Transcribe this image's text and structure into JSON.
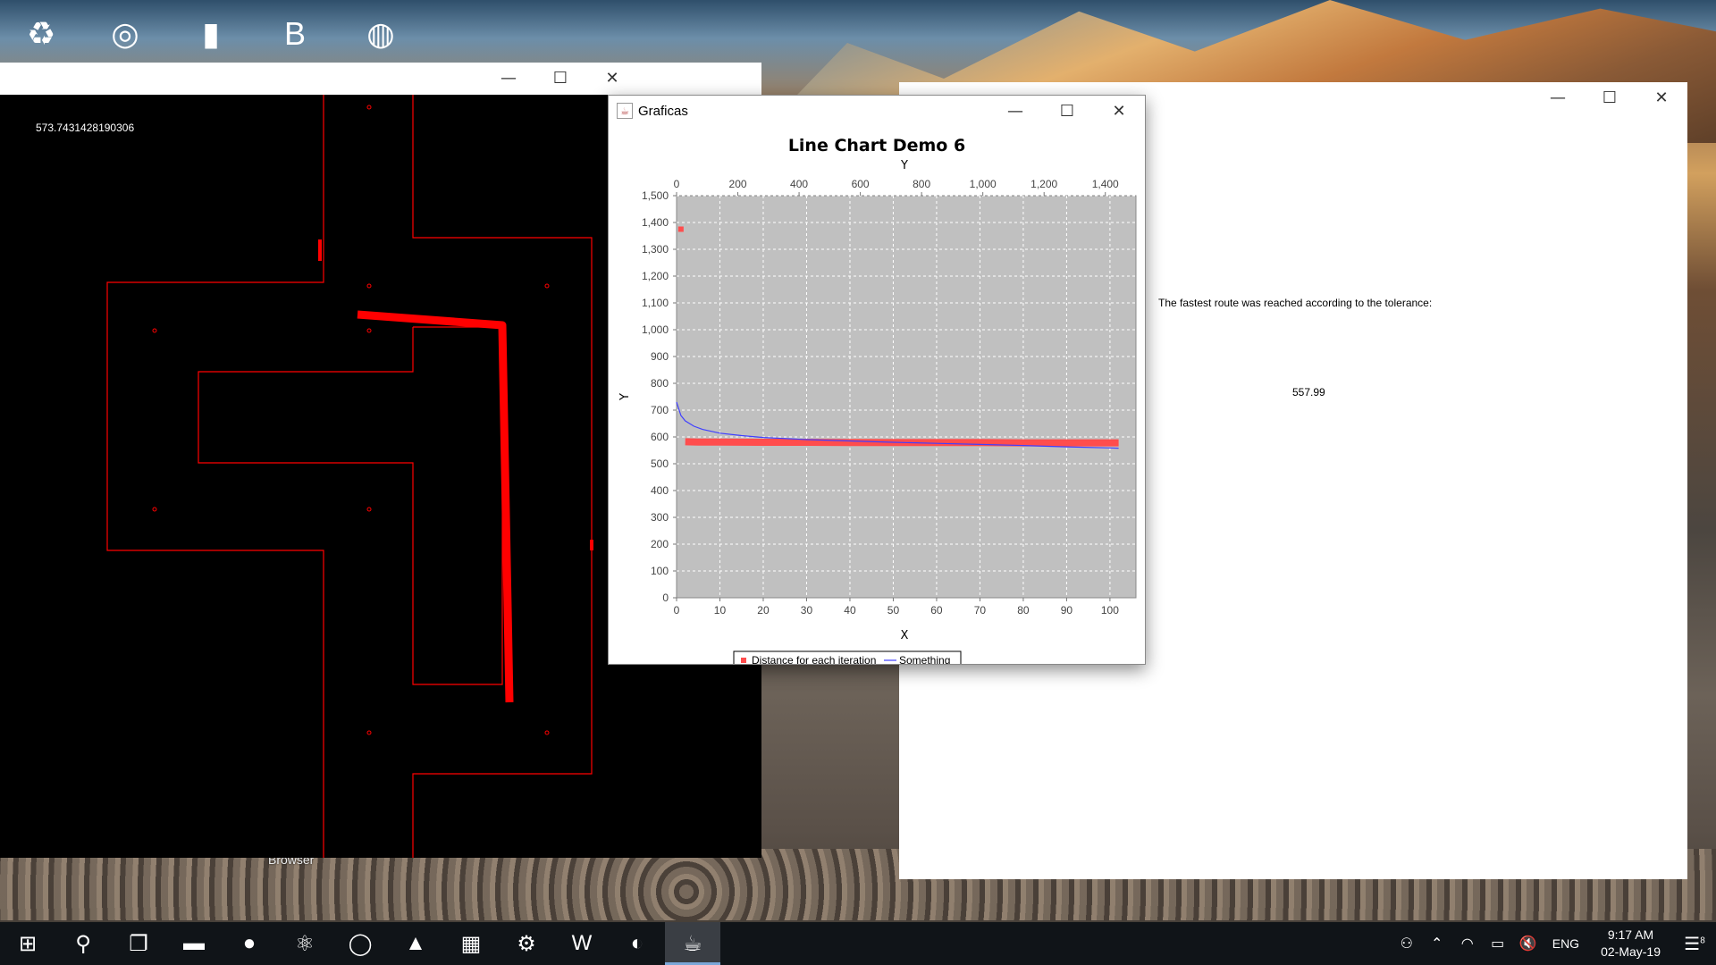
{
  "desktop": {
    "icons": [
      "recycle-bin-icon",
      "steam-icon",
      "folder-doc-icon",
      "bluejeans-icon",
      "globe-app-icon"
    ],
    "partial_label": "Browser"
  },
  "map_window": {
    "readout": "573.7431428190306"
  },
  "result_window": {
    "message": "The fastest route was reached according to the tolerance:",
    "value": "557.99"
  },
  "chart_window": {
    "title": "Graficas",
    "controls": {
      "minimize": "—",
      "maximize": "☐",
      "close": "✕"
    }
  },
  "chart_data": {
    "type": "line",
    "title": "Line Chart Demo 6",
    "xlabel": "X",
    "ylabel": "Y",
    "top_axis_label": "Y",
    "xlim": [
      0,
      106
    ],
    "ylim": [
      0,
      1500
    ],
    "top_lim": [
      0,
      1500
    ],
    "x_ticks": [
      "0",
      "10",
      "20",
      "30",
      "40",
      "50",
      "60",
      "70",
      "80",
      "90",
      "100"
    ],
    "y_ticks": [
      "0",
      "100",
      "200",
      "300",
      "400",
      "500",
      "600",
      "700",
      "800",
      "900",
      "1,000",
      "1,100",
      "1,200",
      "1,300",
      "1,400",
      "1,500"
    ],
    "top_ticks": [
      "0",
      "200",
      "400",
      "600",
      "800",
      "1,000",
      "1,200",
      "1,400"
    ],
    "grid": true,
    "legend_position": "bottom",
    "series": [
      {
        "name": "Distance for each iteration",
        "style": "square-markers",
        "color": "#ff4d4d",
        "points": [
          [
            1,
            1375
          ],
          [
            2,
            582
          ],
          [
            5,
            581
          ],
          [
            10,
            581
          ],
          [
            20,
            580
          ],
          [
            30,
            580
          ],
          [
            40,
            579
          ],
          [
            50,
            579
          ],
          [
            60,
            579
          ],
          [
            70,
            579
          ],
          [
            80,
            578
          ],
          [
            90,
            578
          ],
          [
            100,
            578
          ],
          [
            102,
            578
          ]
        ]
      },
      {
        "name": "Something",
        "style": "line",
        "color": "#3f3fff",
        "points": [
          [
            0,
            730
          ],
          [
            1,
            680
          ],
          [
            2,
            660
          ],
          [
            4,
            640
          ],
          [
            6,
            628
          ],
          [
            10,
            614
          ],
          [
            15,
            605
          ],
          [
            20,
            598
          ],
          [
            30,
            590
          ],
          [
            40,
            585
          ],
          [
            50,
            580
          ],
          [
            60,
            576
          ],
          [
            70,
            572
          ],
          [
            80,
            568
          ],
          [
            90,
            563
          ],
          [
            100,
            559
          ],
          [
            102,
            558
          ]
        ]
      }
    ]
  },
  "taskbar": {
    "apps": [
      {
        "name": "start-icon",
        "glyph": "⊞"
      },
      {
        "name": "search-icon",
        "glyph": "⚲"
      },
      {
        "name": "task-view-icon",
        "glyph": "❐"
      },
      {
        "name": "file-explorer-icon",
        "glyph": "▬"
      },
      {
        "name": "spotify-icon",
        "glyph": "●"
      },
      {
        "name": "atom-icon",
        "glyph": "⚛"
      },
      {
        "name": "opera-icon",
        "glyph": "◯"
      },
      {
        "name": "matlab-icon",
        "glyph": "▲"
      },
      {
        "name": "calculator-icon",
        "glyph": "▦"
      },
      {
        "name": "settings-gear-icon",
        "glyph": "⚙"
      },
      {
        "name": "word-icon",
        "glyph": "W"
      },
      {
        "name": "eclipse-icon",
        "glyph": "◐"
      },
      {
        "name": "java-icon",
        "glyph": "☕"
      }
    ],
    "language": "ENG",
    "time": "9:17 AM",
    "date": "02-May-19",
    "notification_count": "8"
  },
  "colors": {
    "taskbar": "#101418",
    "plot_bg": "#c0c0c0",
    "map_bg": "#000000",
    "map_line": "#ff0000"
  }
}
